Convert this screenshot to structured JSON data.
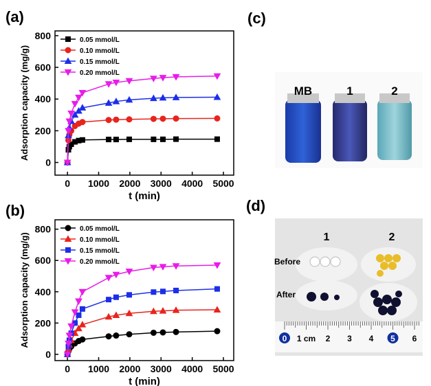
{
  "chart_data": [
    {
      "type": "line",
      "label": "(a)",
      "xlabel": "t (min)",
      "ylabel": "Adsorption capacity (mg/g)",
      "xlim": [
        -400,
        5330
      ],
      "ylim": [
        -80,
        830
      ],
      "xticks": [
        0,
        1000,
        2000,
        3000,
        4000,
        5000
      ],
      "yticks": [
        0,
        200,
        400,
        600,
        800
      ],
      "x": [
        0,
        30,
        60,
        120,
        240,
        360,
        480,
        1320,
        1560,
        1980,
        2760,
        3060,
        3480,
        4800
      ],
      "series": [
        {
          "name": "0.05 mmol/L",
          "color": "#000000",
          "marker": "square",
          "values": [
            0,
            80,
            100,
            115,
            130,
            138,
            142,
            145,
            145,
            146,
            146,
            146,
            147,
            147
          ]
        },
        {
          "name": "0.10 mmol/L",
          "color": "#e8241c",
          "marker": "circle",
          "values": [
            0,
            140,
            175,
            200,
            230,
            245,
            255,
            268,
            270,
            272,
            275,
            276,
            277,
            278
          ]
        },
        {
          "name": "0.15 mmol/L",
          "color": "#1c2ee8",
          "marker": "triangle-up",
          "values": [
            0,
            170,
            220,
            260,
            300,
            325,
            345,
            375,
            385,
            395,
            405,
            408,
            410,
            412
          ]
        },
        {
          "name": "0.20 mmol/L",
          "color": "#e81ce8",
          "marker": "triangle-down",
          "values": [
            0,
            200,
            260,
            310,
            370,
            410,
            440,
            495,
            505,
            515,
            530,
            535,
            540,
            545
          ]
        }
      ]
    },
    {
      "type": "line",
      "label": "(b)",
      "xlabel": "t (min)",
      "ylabel": "Adsorption capacity (mg/g)",
      "xlim": [
        -400,
        5330
      ],
      "ylim": [
        -40,
        860
      ],
      "xticks": [
        0,
        1000,
        2000,
        3000,
        4000,
        5000
      ],
      "yticks": [
        0,
        200,
        400,
        600,
        800
      ],
      "x": [
        0,
        30,
        60,
        120,
        240,
        360,
        480,
        1320,
        1560,
        1980,
        2760,
        3060,
        3480,
        4800
      ],
      "series": [
        {
          "name": "0.05 mmol/L",
          "color": "#000000",
          "marker": "circle",
          "values": [
            0,
            20,
            35,
            50,
            70,
            85,
            95,
            115,
            120,
            128,
            138,
            140,
            143,
            148
          ]
        },
        {
          "name": "0.10 mmol/L",
          "color": "#e8241c",
          "marker": "triangle-up",
          "values": [
            0,
            35,
            60,
            90,
            135,
            165,
            190,
            240,
            250,
            262,
            275,
            278,
            282,
            285
          ]
        },
        {
          "name": "0.15 mmol/L",
          "color": "#1c2ee8",
          "marker": "square",
          "values": [
            0,
            50,
            90,
            135,
            200,
            250,
            290,
            350,
            365,
            380,
            398,
            402,
            408,
            418
          ]
        },
        {
          "name": "0.20 mmol/L",
          "color": "#e81ce8",
          "marker": "triangle-down",
          "values": [
            0,
            70,
            120,
            180,
            270,
            340,
            400,
            490,
            510,
            530,
            555,
            560,
            565,
            570
          ]
        }
      ]
    }
  ],
  "photo_c": {
    "label": "(c)",
    "vial_labels": [
      "MB",
      "1",
      "2"
    ]
  },
  "photo_d": {
    "label": "(d)",
    "column_labels": [
      "1",
      "2"
    ],
    "row_labels": [
      "Before",
      "After"
    ],
    "ruler_labels": [
      "0",
      "1 cm",
      "2",
      "3",
      "4",
      "5",
      "6"
    ]
  }
}
